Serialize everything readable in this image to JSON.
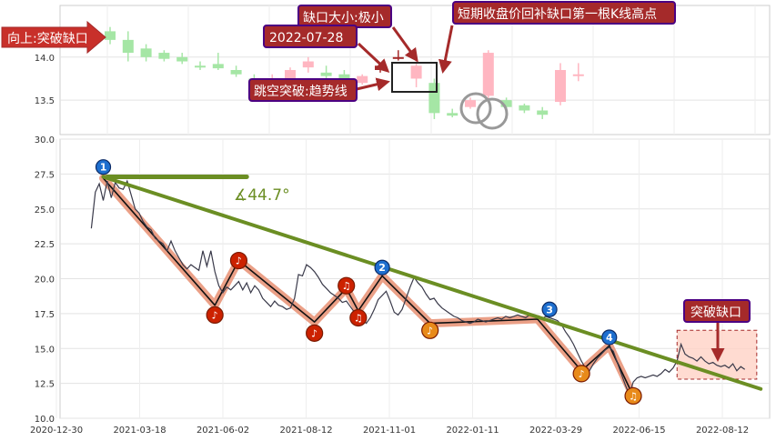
{
  "chart_data": [
    {
      "type": "candlestick",
      "panel": "top",
      "ylim": [
        13.1,
        14.6
      ],
      "yticks": [
        "14.0",
        "13.5"
      ],
      "grid": true,
      "candles": [
        {
          "o": 14.3,
          "c": 14.2,
          "h": 14.35,
          "l": 14.15,
          "col": "#a5e6a5"
        },
        {
          "o": 14.2,
          "c": 14.05,
          "h": 14.3,
          "l": 13.95,
          "col": "#a5e6a5"
        },
        {
          "o": 14.1,
          "c": 14.0,
          "h": 14.15,
          "l": 13.95,
          "col": "#a5e6a5"
        },
        {
          "o": 14.05,
          "c": 13.98,
          "h": 14.08,
          "l": 13.95,
          "col": "#a5e6a5"
        },
        {
          "o": 14.0,
          "c": 13.95,
          "h": 14.05,
          "l": 13.92,
          "col": "#a5e6a5"
        },
        {
          "o": 13.9,
          "c": 13.88,
          "h": 13.95,
          "l": 13.85,
          "col": "#a5e6a5"
        },
        {
          "o": 13.92,
          "c": 13.87,
          "h": 14.05,
          "l": 13.85,
          "col": "#a5e6a5"
        },
        {
          "o": 13.85,
          "c": 13.8,
          "h": 13.9,
          "l": 13.77,
          "col": "#a5e6a5"
        },
        {
          "o": 13.75,
          "c": 13.55,
          "h": 13.8,
          "l": 13.52,
          "col": "#a5e6a5"
        },
        {
          "o": 13.6,
          "c": 13.75,
          "h": 13.8,
          "l": 13.5,
          "col": "#ffb6c1"
        },
        {
          "o": 13.75,
          "c": 13.85,
          "h": 13.88,
          "l": 13.7,
          "col": "#ffb6c1"
        },
        {
          "o": 13.88,
          "c": 13.95,
          "h": 14.0,
          "l": 13.82,
          "col": "#ffb6c1"
        },
        {
          "o": 13.82,
          "c": 13.78,
          "h": 13.9,
          "l": 13.75,
          "col": "#a5e6a5"
        },
        {
          "o": 13.8,
          "c": 13.7,
          "h": 13.85,
          "l": 13.65,
          "col": "#a5e6a5"
        },
        {
          "o": 13.7,
          "c": 13.78,
          "h": 13.8,
          "l": 13.68,
          "col": "#ffb6c1"
        },
        {
          "o": 13.85,
          "c": 13.9,
          "h": 13.93,
          "l": 13.82,
          "col": "#a52a2a"
        },
        {
          "o": 13.98,
          "c": 14.0,
          "h": 14.08,
          "l": 13.96,
          "col": "#a52a2a"
        },
        {
          "o": 13.75,
          "c": 13.9,
          "h": 14.0,
          "l": 13.65,
          "col": "#ffb6c1"
        },
        {
          "o": 13.7,
          "c": 13.35,
          "h": 13.75,
          "l": 13.28,
          "col": "#a5e6a5"
        },
        {
          "o": 13.35,
          "c": 13.32,
          "h": 13.4,
          "l": 13.3,
          "col": "#a5e6a5"
        },
        {
          "o": 13.42,
          "c": 13.5,
          "h": 13.53,
          "l": 13.4,
          "col": "#ffb6c1"
        },
        {
          "o": 13.55,
          "c": 14.05,
          "h": 14.08,
          "l": 13.5,
          "col": "#ffb6c1"
        },
        {
          "o": 13.5,
          "c": 13.42,
          "h": 13.53,
          "l": 13.38,
          "col": "#a5e6a5"
        },
        {
          "o": 13.44,
          "c": 13.38,
          "h": 13.46,
          "l": 13.35,
          "col": "#a5e6a5"
        },
        {
          "o": 13.38,
          "c": 13.33,
          "h": 13.42,
          "l": 13.28,
          "col": "#a5e6a5"
        },
        {
          "o": 13.48,
          "c": 13.85,
          "h": 13.93,
          "l": 13.44,
          "col": "#ffb6c1"
        },
        {
          "o": 13.8,
          "c": 13.78,
          "h": 13.93,
          "l": 13.72,
          "col": "#ffb6c1"
        }
      ]
    },
    {
      "type": "line",
      "panel": "bottom",
      "ylim": [
        10.0,
        30.0
      ],
      "yticks": [
        "30.0",
        "27.5",
        "25.0",
        "22.5",
        "20.0",
        "17.5",
        "15.0",
        "12.5",
        "10.0"
      ],
      "x_ticks": [
        "2020-12-30",
        "2021-03-18",
        "2021-06-02",
        "2021-08-12",
        "2021-11-01",
        "2022-01-11",
        "2022-03-29",
        "2022-06-15",
        "2022-08-12"
      ],
      "grid": true,
      "price": [
        [
          1,
          23.6
        ],
        [
          2,
          26.2
        ],
        [
          3,
          26.8
        ],
        [
          4,
          25.6
        ],
        [
          5,
          27.0
        ],
        [
          6,
          25.8
        ],
        [
          7,
          26.9
        ],
        [
          8,
          26.5
        ],
        [
          9,
          26.4
        ],
        [
          10,
          27.0
        ],
        [
          11,
          26.0
        ],
        [
          12,
          25.0
        ],
        [
          13,
          24.7
        ],
        [
          14,
          24.1
        ],
        [
          15,
          23.7
        ],
        [
          16,
          23.5
        ],
        [
          17,
          22.9
        ],
        [
          18,
          22.7
        ],
        [
          19,
          22.5
        ],
        [
          20,
          22.0
        ],
        [
          21,
          22.7
        ],
        [
          22,
          22.0
        ],
        [
          23,
          21.5
        ],
        [
          24,
          21.0
        ],
        [
          25,
          20.7
        ],
        [
          26,
          21.0
        ],
        [
          27,
          20.8
        ],
        [
          28,
          20.6
        ],
        [
          29,
          22.0
        ],
        [
          30,
          20.9
        ],
        [
          31,
          22.0
        ],
        [
          32,
          20.5
        ],
        [
          33,
          19.5
        ],
        [
          34,
          19.0
        ],
        [
          35,
          19.4
        ],
        [
          36,
          19.2
        ],
        [
          37,
          19.5
        ],
        [
          38,
          19.8
        ],
        [
          39,
          19.2
        ],
        [
          40,
          19.7
        ],
        [
          41,
          19.0
        ],
        [
          42,
          19.5
        ],
        [
          43,
          19.2
        ],
        [
          44,
          18.6
        ],
        [
          45,
          18.3
        ],
        [
          46,
          18.0
        ],
        [
          47,
          18.4
        ],
        [
          48,
          18.1
        ],
        [
          49,
          18.0
        ],
        [
          50,
          17.8
        ],
        [
          51,
          17.9
        ],
        [
          52,
          18.6
        ],
        [
          53,
          20.3
        ],
        [
          54,
          20.2
        ],
        [
          55,
          21.0
        ],
        [
          56,
          20.8
        ],
        [
          57,
          20.5
        ],
        [
          58,
          20.1
        ],
        [
          59,
          19.6
        ],
        [
          60,
          19.3
        ],
        [
          61,
          19.0
        ],
        [
          62,
          18.8
        ],
        [
          63,
          18.6
        ],
        [
          64,
          18.3
        ],
        [
          65,
          18.4
        ],
        [
          66,
          18.0
        ],
        [
          67,
          17.6
        ],
        [
          68,
          17.3
        ],
        [
          69,
          17.1
        ],
        [
          70,
          16.8
        ],
        [
          71,
          17.2
        ],
        [
          72,
          17.8
        ],
        [
          73,
          18.5
        ],
        [
          74,
          18.8
        ],
        [
          75,
          19.1
        ],
        [
          76,
          18.4
        ],
        [
          77,
          17.6
        ],
        [
          78,
          17.4
        ],
        [
          79,
          17.8
        ],
        [
          80,
          18.6
        ],
        [
          81,
          19.4
        ],
        [
          82,
          20.1
        ],
        [
          83,
          19.7
        ],
        [
          84,
          19.4
        ],
        [
          85,
          18.9
        ],
        [
          86,
          18.5
        ],
        [
          87,
          18.6
        ],
        [
          88,
          18.2
        ],
        [
          89,
          17.9
        ],
        [
          90,
          17.7
        ],
        [
          91,
          17.5
        ],
        [
          92,
          17.3
        ],
        [
          93,
          17.2
        ],
        [
          94,
          17.0
        ],
        [
          95,
          16.9
        ],
        [
          96,
          16.8
        ],
        [
          97,
          16.9
        ],
        [
          98,
          17.1
        ],
        [
          99,
          17.0
        ],
        [
          100,
          16.9
        ],
        [
          101,
          17.0
        ],
        [
          102,
          17.1
        ],
        [
          103,
          17.2
        ],
        [
          104,
          17.1
        ],
        [
          105,
          17.3
        ],
        [
          106,
          17.2
        ],
        [
          107,
          17.3
        ],
        [
          108,
          17.4
        ],
        [
          109,
          17.3
        ],
        [
          110,
          17.2
        ],
        [
          111,
          17.4
        ],
        [
          112,
          17.3
        ],
        [
          113,
          17.2
        ],
        [
          114,
          17.1
        ],
        [
          115,
          17.3
        ],
        [
          116,
          17.2
        ],
        [
          117,
          17.1
        ],
        [
          118,
          17.0
        ],
        [
          119,
          16.7
        ],
        [
          120,
          16.2
        ],
        [
          121,
          15.8
        ],
        [
          122,
          15.3
        ],
        [
          123,
          14.7
        ],
        [
          124,
          14.1
        ],
        [
          125,
          13.6
        ],
        [
          126,
          13.4
        ],
        [
          127,
          13.9
        ],
        [
          128,
          14.3
        ],
        [
          129,
          14.6
        ],
        [
          130,
          14.9
        ],
        [
          131,
          15.1
        ],
        [
          132,
          14.8
        ],
        [
          133,
          14.0
        ],
        [
          134,
          13.2
        ],
        [
          135,
          12.4
        ],
        [
          136,
          11.7
        ],
        [
          137,
          12.6
        ],
        [
          138,
          12.9
        ],
        [
          139,
          13.0
        ],
        [
          140,
          12.9
        ],
        [
          141,
          13.0
        ],
        [
          142,
          13.1
        ],
        [
          143,
          13.0
        ],
        [
          144,
          13.2
        ],
        [
          145,
          13.5
        ],
        [
          146,
          13.3
        ],
        [
          147,
          13.6
        ],
        [
          148,
          14.1
        ],
        [
          149,
          15.3
        ],
        [
          150,
          14.6
        ],
        [
          151,
          14.4
        ],
        [
          152,
          14.3
        ],
        [
          153,
          14.1
        ],
        [
          154,
          14.4
        ],
        [
          155,
          14.1
        ],
        [
          156,
          13.9
        ],
        [
          157,
          14.0
        ],
        [
          158,
          13.8
        ],
        [
          159,
          13.7
        ],
        [
          160,
          13.8
        ],
        [
          161,
          13.6
        ],
        [
          162,
          13.9
        ],
        [
          163,
          13.4
        ],
        [
          164,
          13.7
        ],
        [
          165,
          13.5
        ]
      ],
      "pattern": [
        [
          4,
          27.2
        ],
        [
          32,
          18.1
        ],
        [
          38,
          21.3
        ],
        [
          57,
          16.9
        ],
        [
          65,
          19.3
        ],
        [
          68,
          17.7
        ],
        [
          74,
          20.2
        ],
        [
          86,
          16.8
        ],
        [
          113,
          17.1
        ],
        [
          124,
          13.4
        ],
        [
          131,
          15.2
        ],
        [
          137,
          11.6
        ]
      ],
      "trendline": {
        "from": [
          4,
          27.3
        ],
        "to": [
          169,
          12.1
        ]
      },
      "flat_line": {
        "from": [
          4,
          27.3
        ],
        "to": [
          40,
          27.3
        ]
      },
      "angle_label": "∡44.7°",
      "markers": [
        {
          "x": 4,
          "y": 28.0,
          "kind": "num",
          "label": "1"
        },
        {
          "x": 74,
          "y": 20.8,
          "kind": "num",
          "label": "2"
        },
        {
          "x": 116,
          "y": 17.8,
          "kind": "num",
          "label": "3"
        },
        {
          "x": 131,
          "y": 15.8,
          "kind": "num",
          "label": "4"
        },
        {
          "x": 32,
          "y": 17.4,
          "kind": "red",
          "label": "♪"
        },
        {
          "x": 38,
          "y": 21.3,
          "kind": "red",
          "label": "♪"
        },
        {
          "x": 57,
          "y": 16.1,
          "kind": "red",
          "label": "♪"
        },
        {
          "x": 65,
          "y": 19.5,
          "kind": "red",
          "label": "♫"
        },
        {
          "x": 68,
          "y": 17.2,
          "kind": "red",
          "label": "♫"
        },
        {
          "x": 86,
          "y": 16.3,
          "kind": "orange",
          "label": "♪"
        },
        {
          "x": 124,
          "y": 13.2,
          "kind": "orange",
          "label": "♪"
        },
        {
          "x": 137,
          "y": 11.6,
          "kind": "orange",
          "label": "♫"
        }
      ],
      "highlight_box": {
        "x0": 148,
        "x1": 168,
        "y0": 12.8,
        "y1": 16.3
      }
    }
  ],
  "annotations": {
    "up_gap": "向上:突破缺口",
    "gap_size": "缺口大小:极小",
    "date": "2022-07-28",
    "short_close": "短期收盘价回补缺口第一根K线高点",
    "jump_break": "跳空突破:趋势线",
    "break_gap": "突破缺口"
  },
  "colors": {
    "note_bg": "#a52a2a",
    "note_border": "#4b0082",
    "trend": "#6b8e23",
    "pattern": "#e9967a",
    "price": "#3a3a4a",
    "marker_num": "#1e6fcf",
    "marker_red": "#cc2200",
    "marker_orange": "#e88a1a"
  }
}
